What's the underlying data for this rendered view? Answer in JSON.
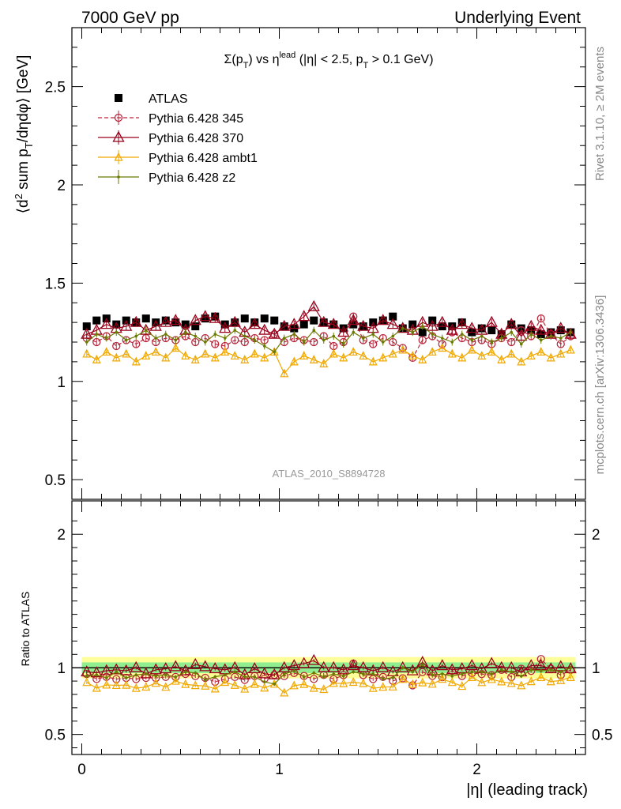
{
  "header": {
    "left": "7000 GeV pp",
    "right": "Underlying Event"
  },
  "side_text": {
    "rivet": "Rivet 3.1.10, ≥ 2M events",
    "mcplots": "mcplots.cern.ch [arXiv:1306.3436]"
  },
  "analysis_label": "ATLAS_2010_S8894728",
  "plot_title": {
    "p1": "Σ(p",
    "sub1": "T",
    "p2": ") vs η",
    "sup": "lead",
    "p3": " (|η| < 2.5, p",
    "sub2": "T",
    "p4": " > 0.1 GeV)"
  },
  "colors": {
    "atlas": "#000000",
    "p345": "#b8283d",
    "p370": "#99001a",
    "ambt1": "#f0a800",
    "z2": "#6b7a00",
    "band_green": "#90ee90",
    "band_yellow": "#ffff99"
  },
  "chart_data": [
    {
      "type": "scatter",
      "panel": "main",
      "title": "Σ(pT) vs ηlead (|η| < 2.5, pT > 0.1 GeV)",
      "ylabel": "⟨d² sum p_T/dηdφ⟩ [GeV]",
      "xlabel": "|η| (leading track)",
      "xlim": [
        -0.05,
        2.55
      ],
      "ylim": [
        0.4,
        2.8
      ],
      "yticks": [
        "0.5",
        "1",
        "1.5",
        "2",
        "2.5"
      ],
      "xticks": [
        "0",
        "1",
        "2"
      ],
      "legend_placement": "top-left",
      "x": [
        0.025,
        0.075,
        0.125,
        0.175,
        0.225,
        0.275,
        0.325,
        0.375,
        0.425,
        0.475,
        0.525,
        0.575,
        0.625,
        0.675,
        0.725,
        0.775,
        0.825,
        0.875,
        0.925,
        0.975,
        1.025,
        1.075,
        1.125,
        1.175,
        1.225,
        1.275,
        1.325,
        1.375,
        1.425,
        1.475,
        1.525,
        1.575,
        1.625,
        1.675,
        1.725,
        1.775,
        1.825,
        1.875,
        1.925,
        1.975,
        2.025,
        2.075,
        2.125,
        2.175,
        2.225,
        2.275,
        2.325,
        2.375,
        2.425,
        2.475
      ],
      "series": [
        {
          "name": "ATLAS",
          "marker": "square",
          "color_key": "atlas",
          "values": [
            1.28,
            1.31,
            1.32,
            1.29,
            1.31,
            1.3,
            1.32,
            1.3,
            1.31,
            1.3,
            1.29,
            1.28,
            1.32,
            1.33,
            1.29,
            1.3,
            1.32,
            1.3,
            1.32,
            1.31,
            1.28,
            1.27,
            1.29,
            1.31,
            1.3,
            1.29,
            1.27,
            1.29,
            1.28,
            1.3,
            1.31,
            1.33,
            1.27,
            1.29,
            1.25,
            1.31,
            1.28,
            1.28,
            1.3,
            1.25,
            1.27,
            1.26,
            1.24,
            1.29,
            1.27,
            1.26,
            1.24,
            1.25,
            1.26,
            1.25
          ]
        },
        {
          "name": "Pythia 6.428 345",
          "marker": "open-circle",
          "line": "dashed",
          "color_key": "p345",
          "values": [
            1.22,
            1.2,
            1.23,
            1.18,
            1.21,
            1.19,
            1.22,
            1.2,
            1.22,
            1.21,
            1.23,
            1.2,
            1.22,
            1.19,
            1.18,
            1.21,
            1.2,
            1.22,
            1.21,
            1.24,
            1.2,
            1.22,
            1.21,
            1.2,
            1.23,
            1.18,
            1.2,
            1.33,
            1.21,
            1.19,
            1.22,
            1.2,
            1.17,
            1.12,
            1.21,
            1.23,
            1.19,
            1.25,
            1.22,
            1.2,
            1.21,
            1.19,
            1.22,
            1.2,
            1.26,
            1.23,
            1.32,
            1.24,
            1.19,
            1.23
          ]
        },
        {
          "name": "Pythia 6.428 370",
          "marker": "open-triangle",
          "line": "solid",
          "color_key": "p370",
          "values": [
            1.24,
            1.26,
            1.29,
            1.27,
            1.28,
            1.3,
            1.26,
            1.28,
            1.3,
            1.31,
            1.26,
            1.31,
            1.33,
            1.32,
            1.27,
            1.3,
            1.25,
            1.29,
            1.26,
            1.24,
            1.28,
            1.29,
            1.33,
            1.38,
            1.3,
            1.29,
            1.25,
            1.31,
            1.28,
            1.27,
            1.31,
            1.29,
            1.27,
            1.26,
            1.3,
            1.28,
            1.3,
            1.26,
            1.29,
            1.27,
            1.26,
            1.3,
            1.24,
            1.29,
            1.23,
            1.28,
            1.26,
            1.24,
            1.27,
            1.24
          ]
        },
        {
          "name": "Pythia 6.428 ambt1",
          "marker": "open-triangle-small",
          "line": "solid",
          "color_key": "ambt1",
          "values": [
            1.14,
            1.11,
            1.15,
            1.12,
            1.14,
            1.1,
            1.13,
            1.15,
            1.12,
            1.17,
            1.13,
            1.11,
            1.14,
            1.12,
            1.15,
            1.13,
            1.11,
            1.14,
            1.12,
            1.15,
            1.04,
            1.1,
            1.13,
            1.11,
            1.09,
            1.14,
            1.12,
            1.15,
            1.13,
            1.1,
            1.12,
            1.14,
            1.16,
            1.13,
            1.11,
            1.15,
            1.17,
            1.14,
            1.12,
            1.16,
            1.13,
            1.15,
            1.11,
            1.14,
            1.1,
            1.13,
            1.15,
            1.12,
            1.14,
            1.16
          ]
        },
        {
          "name": "Pythia 6.428 z2",
          "marker": "dot",
          "line": "solid",
          "color_key": "z2",
          "values": [
            1.2,
            1.24,
            1.22,
            1.25,
            1.21,
            1.23,
            1.26,
            1.22,
            1.24,
            1.21,
            1.25,
            1.23,
            1.2,
            1.24,
            1.22,
            1.26,
            1.23,
            1.21,
            1.18,
            1.15,
            1.22,
            1.24,
            1.2,
            1.26,
            1.21,
            1.23,
            1.19,
            1.25,
            1.22,
            1.24,
            1.2,
            1.23,
            1.27,
            1.25,
            1.28,
            1.24,
            1.22,
            1.2,
            1.24,
            1.21,
            1.23,
            1.2,
            1.22,
            1.25,
            1.19,
            1.24,
            1.21,
            1.23,
            1.22,
            1.25
          ]
        }
      ]
    },
    {
      "type": "scatter",
      "panel": "ratio",
      "ylabel": "Ratio to ATLAS",
      "xlabel": "|η| (leading track)",
      "xlim": [
        -0.05,
        2.55
      ],
      "ylim": [
        0.35,
        2.25
      ],
      "yticks": [
        "0.5",
        "1",
        "2"
      ],
      "xticks": [
        "0",
        "1",
        "2"
      ],
      "reference_band": {
        "inner_halfwidth": 0.04,
        "outer_halfwidth": 0.08
      }
    }
  ]
}
